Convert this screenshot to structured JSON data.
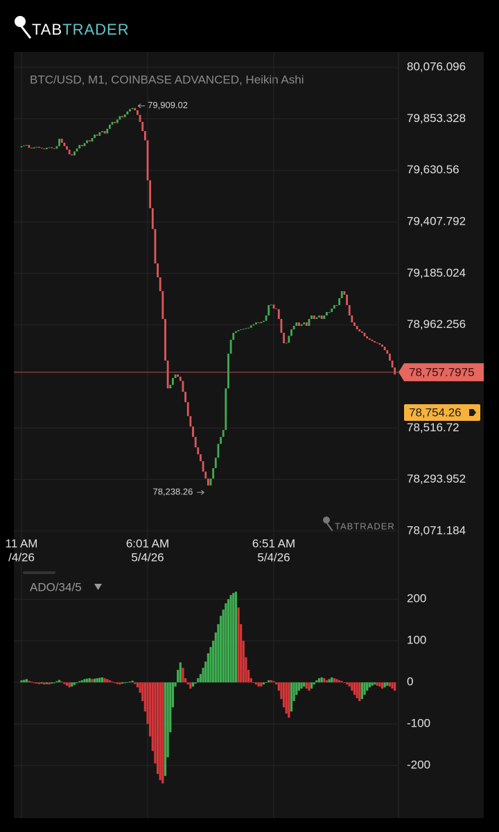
{
  "logo": {
    "part1": "TAB",
    "part2": "TRADER"
  },
  "chart_data": [
    {
      "type": "candlestick",
      "title": "BTC/USD, M1, COINBASE ADVANCED, Heikin Ashi",
      "categories": [
        [
          "11 AM",
          "/4/26"
        ],
        null,
        null,
        null,
        null,
        null,
        null,
        null,
        null,
        null,
        null,
        null,
        null,
        null,
        null,
        null,
        null,
        null,
        null,
        null,
        null,
        null,
        null,
        null,
        null,
        null,
        null,
        null,
        null,
        null,
        null,
        null,
        null,
        null,
        null,
        null,
        null,
        null,
        null,
        null,
        null,
        null,
        null,
        null,
        null,
        null,
        null,
        null,
        null,
        null,
        [
          "6:01 AM",
          "5/4/26"
        ],
        null,
        null,
        null,
        null,
        null,
        null,
        null,
        null,
        null,
        null,
        null,
        null,
        null,
        null,
        null,
        null,
        null,
        null,
        null,
        null,
        null,
        null,
        null,
        null,
        null,
        null,
        null,
        null,
        null,
        null,
        null,
        null,
        null,
        null,
        null,
        null,
        null,
        null,
        null,
        null,
        null,
        null,
        null,
        null,
        null,
        null,
        null,
        null,
        null,
        [
          "6:51 AM",
          "5/4/26"
        ],
        null,
        null,
        null,
        null,
        null,
        null,
        null,
        null,
        null,
        null,
        null,
        null,
        null,
        null,
        null,
        null,
        null,
        null,
        null,
        null,
        null,
        null,
        null,
        null,
        null,
        null,
        null,
        null,
        null,
        null,
        null,
        null,
        null,
        null,
        null,
        null,
        null,
        null,
        null,
        null,
        null,
        null,
        null,
        null,
        null,
        null,
        null,
        null
      ],
      "open": [
        79730,
        79735,
        79738,
        79740,
        79728,
        79725,
        79730,
        79732,
        79728,
        79725,
        79722,
        79728,
        79730,
        79726,
        79724,
        79735,
        79767,
        79750,
        79735,
        79720,
        79700,
        79695,
        79712,
        79725,
        79740,
        79735,
        79748,
        79760,
        79755,
        79770,
        79785,
        79780,
        79795,
        79800,
        79790,
        79810,
        79828,
        79840,
        79835,
        79850,
        79865,
        79860,
        79872,
        79885,
        79895,
        79900,
        79890,
        79870,
        79840,
        79800,
        79760,
        79587,
        79467,
        79377,
        79228,
        79168,
        79108,
        78988,
        78808,
        78688,
        78703,
        78733,
        78748,
        78738,
        78720,
        78673,
        78628,
        78568,
        78523,
        78478,
        78433,
        78403,
        78373,
        78328,
        78298,
        78268,
        78298,
        78343,
        78388,
        78448,
        78478,
        78508,
        78688,
        78838,
        78898,
        78928,
        78935,
        78940,
        78943,
        78945,
        78948,
        78950,
        78960,
        78965,
        78973,
        78970,
        78975,
        78980,
        79003,
        79048,
        79050,
        79033,
        79030,
        78988,
        78928,
        78883,
        78885,
        78915,
        78943,
        78958,
        78973,
        78958,
        78965,
        78973,
        78958,
        78988,
        79003,
        78988,
        78995,
        79003,
        78988,
        79003,
        79018,
        79018,
        79033,
        79048,
        79048,
        79078,
        79108,
        79093,
        79048,
        79003,
        78973,
        78958,
        78943,
        78934,
        78928,
        78913,
        78904,
        78898,
        78892,
        78886,
        78883,
        78877,
        78868,
        78853,
        78838,
        78808,
        78778
      ],
      "close": [
        79735,
        79738,
        79740,
        79728,
        79725,
        79730,
        79732,
        79728,
        79725,
        79722,
        79728,
        79730,
        79726,
        79724,
        79735,
        79767,
        79750,
        79735,
        79720,
        79700,
        79695,
        79712,
        79725,
        79740,
        79735,
        79748,
        79760,
        79755,
        79770,
        79785,
        79780,
        79795,
        79800,
        79790,
        79810,
        79828,
        79840,
        79835,
        79850,
        79865,
        79860,
        79872,
        79885,
        79895,
        79900,
        79890,
        79870,
        79840,
        79800,
        79760,
        79587,
        79467,
        79377,
        79228,
        79168,
        79108,
        78988,
        78808,
        78688,
        78703,
        78733,
        78748,
        78738,
        78720,
        78673,
        78628,
        78568,
        78523,
        78478,
        78433,
        78403,
        78373,
        78328,
        78298,
        78268,
        78298,
        78343,
        78388,
        78448,
        78478,
        78508,
        78688,
        78838,
        78898,
        78928,
        78935,
        78940,
        78943,
        78945,
        78948,
        78950,
        78960,
        78965,
        78973,
        78970,
        78975,
        78980,
        79003,
        79048,
        79050,
        79033,
        79030,
        78988,
        78928,
        78883,
        78885,
        78915,
        78943,
        78958,
        78973,
        78958,
        78965,
        78973,
        78958,
        78988,
        79003,
        78988,
        78995,
        79003,
        78988,
        79003,
        79018,
        79018,
        79033,
        79048,
        79048,
        79078,
        79108,
        79093,
        79048,
        79003,
        78973,
        78958,
        78943,
        78934,
        78928,
        78913,
        78904,
        78898,
        78892,
        78886,
        78883,
        78877,
        78868,
        78853,
        78838,
        78808,
        78778,
        78748
      ],
      "ylim": [
        78029,
        80127
      ],
      "yticks": [
        {
          "value": 80076.096,
          "label": "80,076.096"
        },
        {
          "value": 79853.328,
          "label": "79,853.328"
        },
        {
          "value": 79630.56,
          "label": "79,630.56"
        },
        {
          "value": 79407.792,
          "label": "79,407.792"
        },
        {
          "value": 79185.024,
          "label": "79,185.024"
        },
        {
          "value": 78962.256,
          "label": "78,962.256"
        },
        {
          "value": 78516.72,
          "label": "78,516.72"
        },
        {
          "value": 78293.952,
          "label": "78,293.952"
        },
        {
          "value": 78071.184,
          "label": "78,071.184"
        }
      ],
      "grid": true,
      "up_color": "#3fae51",
      "down_color": "#e0575b",
      "annotations": [
        {
          "value": 79909.02,
          "label": "79,909.02"
        },
        {
          "value": 78238.26,
          "label": "78,238.26"
        }
      ],
      "last_price": {
        "value": 78757.7975,
        "label": "78,757.7975"
      },
      "bid_price": {
        "value": 78754.26,
        "label": "78,754.26"
      },
      "watermark": "TABTRADER"
    },
    {
      "type": "histogram",
      "title": "ADO/34/5",
      "values": [
        5,
        6,
        8,
        4,
        2,
        -2,
        -3,
        -4,
        -3,
        -5,
        -4,
        -5,
        -3,
        -2,
        3,
        6,
        2,
        -4,
        -8,
        -12,
        -10,
        -6,
        -2,
        3,
        5,
        8,
        9,
        10,
        8,
        9,
        10,
        11,
        12,
        10,
        8,
        5,
        2,
        -2,
        -4,
        -5,
        -3,
        -2,
        0,
        2,
        4,
        -4,
        -12,
        -25,
        -45,
        -70,
        -100,
        -130,
        -165,
        -195,
        -220,
        -235,
        -243,
        -225,
        -180,
        -120,
        -60,
        -10,
        30,
        48,
        35,
        10,
        -5,
        -15,
        -10,
        -3,
        10,
        20,
        35,
        50,
        70,
        85,
        100,
        120,
        140,
        160,
        175,
        190,
        200,
        210,
        215,
        218,
        180,
        140,
        100,
        60,
        30,
        10,
        0,
        -5,
        -10,
        -10,
        -5,
        0,
        5,
        5,
        3,
        -5,
        -20,
        -40,
        -60,
        -75,
        -85,
        -70,
        -45,
        -30,
        -20,
        -15,
        -10,
        -15,
        -20,
        -15,
        -5,
        5,
        10,
        12,
        10,
        5,
        8,
        12,
        10,
        8,
        5,
        3,
        0,
        -5,
        -10,
        -20,
        -30,
        -38,
        -45,
        -40,
        -30,
        -20,
        -12,
        -8,
        -5,
        -8,
        -10,
        -15,
        -12,
        -8,
        -10,
        -15,
        -20
      ],
      "ylim": [
        -293,
        257
      ],
      "yticks": [
        200,
        100,
        0,
        -100,
        -200
      ],
      "up_color": "#3fae51",
      "down_color": "#d8363a"
    }
  ]
}
